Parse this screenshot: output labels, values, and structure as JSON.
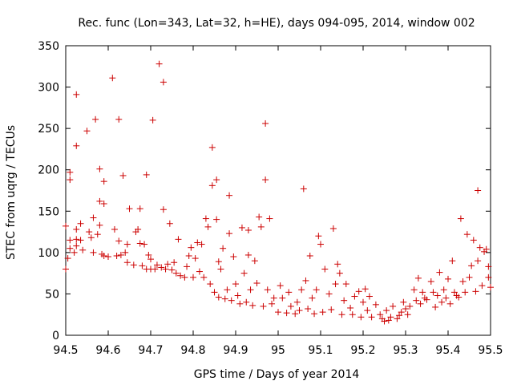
{
  "chart_data": {
    "type": "scatter",
    "title": "Rec. func (Lon=343, Lat=32, h=HE), days 094-095, 2014, window 002",
    "xlabel": "GPS time / Days of year 2014",
    "ylabel": "STEC from uqrg / TECUs",
    "xlim": [
      94.5,
      95.5
    ],
    "ylim": [
      0,
      350
    ],
    "xticks": [
      "94.5",
      "94.6",
      "94.7",
      "94.8",
      "94.9",
      "95",
      "95.1",
      "95.2",
      "95.3",
      "95.4",
      "95.5"
    ],
    "yticks": [
      "0",
      "50",
      "100",
      "150",
      "200",
      "250",
      "300",
      "350"
    ],
    "marker": "+",
    "color": "#cc0000",
    "grid": false,
    "legend": "none",
    "series": [
      {
        "points": [
          [
            94.5,
            80
          ],
          [
            94.5,
            132
          ],
          [
            94.505,
            93
          ],
          [
            94.51,
            188
          ],
          [
            94.51,
            197
          ],
          [
            94.51,
            115
          ],
          [
            94.51,
            105
          ],
          [
            94.52,
            100
          ],
          [
            94.525,
            291
          ],
          [
            94.525,
            229
          ],
          [
            94.525,
            128
          ],
          [
            94.525,
            116
          ],
          [
            94.525,
            108
          ],
          [
            94.535,
            135
          ],
          [
            94.535,
            115
          ],
          [
            94.54,
            103
          ],
          [
            94.55,
            247
          ],
          [
            94.555,
            125
          ],
          [
            94.56,
            118
          ],
          [
            94.565,
            142
          ],
          [
            94.565,
            100
          ],
          [
            94.57,
            261
          ],
          [
            94.575,
            122
          ],
          [
            94.58,
            201
          ],
          [
            94.58,
            162
          ],
          [
            94.58,
            133
          ],
          [
            94.585,
            98
          ],
          [
            94.59,
            186
          ],
          [
            94.59,
            159
          ],
          [
            94.59,
            96
          ],
          [
            94.6,
            95
          ],
          [
            94.61,
            311
          ],
          [
            94.615,
            128
          ],
          [
            94.62,
            96
          ],
          [
            94.625,
            261
          ],
          [
            94.625,
            114
          ],
          [
            94.63,
            97
          ],
          [
            94.635,
            193
          ],
          [
            94.64,
            100
          ],
          [
            94.645,
            110
          ],
          [
            94.645,
            88
          ],
          [
            94.65,
            153
          ],
          [
            94.66,
            85
          ],
          [
            94.665,
            125
          ],
          [
            94.67,
            128
          ],
          [
            94.675,
            111
          ],
          [
            94.675,
            153
          ],
          [
            94.68,
            84
          ],
          [
            94.685,
            110
          ],
          [
            94.69,
            194
          ],
          [
            94.69,
            80
          ],
          [
            94.695,
            97
          ],
          [
            94.7,
            92
          ],
          [
            94.7,
            80
          ],
          [
            94.705,
            260
          ],
          [
            94.71,
            80
          ],
          [
            94.715,
            85
          ],
          [
            94.72,
            328
          ],
          [
            94.725,
            82
          ],
          [
            94.73,
            306
          ],
          [
            94.73,
            152
          ],
          [
            94.735,
            80
          ],
          [
            94.74,
            86
          ],
          [
            94.745,
            135
          ],
          [
            94.75,
            79
          ],
          [
            94.755,
            88
          ],
          [
            94.76,
            75
          ],
          [
            94.765,
            116
          ],
          [
            94.77,
            72
          ],
          [
            94.78,
            70
          ],
          [
            94.785,
            83
          ],
          [
            94.79,
            96
          ],
          [
            94.795,
            106
          ],
          [
            94.8,
            70
          ],
          [
            94.805,
            93
          ],
          [
            94.81,
            112
          ],
          [
            94.815,
            77
          ],
          [
            94.82,
            110
          ],
          [
            94.825,
            70
          ],
          [
            94.83,
            141
          ],
          [
            94.835,
            131
          ],
          [
            94.84,
            62
          ],
          [
            94.845,
            227
          ],
          [
            94.845,
            181
          ],
          [
            94.85,
            52
          ],
          [
            94.855,
            188
          ],
          [
            94.855,
            140
          ],
          [
            94.86,
            89
          ],
          [
            94.86,
            46
          ],
          [
            94.865,
            80
          ],
          [
            94.87,
            105
          ],
          [
            94.875,
            44
          ],
          [
            94.88,
            55
          ],
          [
            94.885,
            169
          ],
          [
            94.885,
            123
          ],
          [
            94.89,
            42
          ],
          [
            94.895,
            95
          ],
          [
            94.9,
            62
          ],
          [
            94.905,
            48
          ],
          [
            94.91,
            38
          ],
          [
            94.915,
            130
          ],
          [
            94.92,
            75
          ],
          [
            94.925,
            40
          ],
          [
            94.93,
            127
          ],
          [
            94.93,
            97
          ],
          [
            94.935,
            55
          ],
          [
            94.94,
            36
          ],
          [
            94.945,
            90
          ],
          [
            94.95,
            63
          ],
          [
            94.955,
            143
          ],
          [
            94.96,
            131
          ],
          [
            94.965,
            35
          ],
          [
            94.97,
            256
          ],
          [
            94.97,
            188
          ],
          [
            94.975,
            55
          ],
          [
            94.98,
            141
          ],
          [
            94.985,
            38
          ],
          [
            94.99,
            45
          ],
          [
            95.0,
            28
          ],
          [
            95.005,
            60
          ],
          [
            95.01,
            45
          ],
          [
            95.02,
            27
          ],
          [
            95.025,
            52
          ],
          [
            95.03,
            35
          ],
          [
            95.04,
            26
          ],
          [
            95.045,
            40
          ],
          [
            95.05,
            30
          ],
          [
            95.055,
            55
          ],
          [
            95.06,
            177
          ],
          [
            95.065,
            66
          ],
          [
            95.07,
            32
          ],
          [
            95.075,
            96
          ],
          [
            95.08,
            45
          ],
          [
            95.085,
            26
          ],
          [
            95.09,
            55
          ],
          [
            95.095,
            120
          ],
          [
            95.1,
            110
          ],
          [
            95.105,
            28
          ],
          [
            95.11,
            80
          ],
          [
            95.12,
            50
          ],
          [
            95.125,
            31
          ],
          [
            95.13,
            129
          ],
          [
            95.135,
            62
          ],
          [
            95.14,
            86
          ],
          [
            95.145,
            75
          ],
          [
            95.15,
            25
          ],
          [
            95.155,
            42
          ],
          [
            95.16,
            62
          ],
          [
            95.17,
            33
          ],
          [
            95.175,
            25
          ],
          [
            95.18,
            47
          ],
          [
            95.19,
            53
          ],
          [
            95.195,
            22
          ],
          [
            95.2,
            40
          ],
          [
            95.205,
            56
          ],
          [
            95.21,
            30
          ],
          [
            95.215,
            47
          ],
          [
            95.22,
            22
          ],
          [
            95.23,
            37
          ],
          [
            95.24,
            25
          ],
          [
            95.245,
            20
          ],
          [
            95.25,
            17
          ],
          [
            95.255,
            30
          ],
          [
            95.26,
            18
          ],
          [
            95.265,
            22
          ],
          [
            95.27,
            35
          ],
          [
            95.28,
            20
          ],
          [
            95.285,
            24
          ],
          [
            95.29,
            28
          ],
          [
            95.295,
            40
          ],
          [
            95.3,
            32
          ],
          [
            95.305,
            25
          ],
          [
            95.31,
            35
          ],
          [
            95.32,
            55
          ],
          [
            95.325,
            42
          ],
          [
            95.33,
            69
          ],
          [
            95.335,
            38
          ],
          [
            95.34,
            52
          ],
          [
            95.345,
            45
          ],
          [
            95.35,
            43
          ],
          [
            95.36,
            65
          ],
          [
            95.365,
            52
          ],
          [
            95.37,
            34
          ],
          [
            95.375,
            48
          ],
          [
            95.38,
            76
          ],
          [
            95.385,
            40
          ],
          [
            95.39,
            55
          ],
          [
            95.395,
            45
          ],
          [
            95.4,
            68
          ],
          [
            95.405,
            38
          ],
          [
            95.41,
            90
          ],
          [
            95.415,
            52
          ],
          [
            95.42,
            48
          ],
          [
            95.425,
            46
          ],
          [
            95.43,
            141
          ],
          [
            95.435,
            65
          ],
          [
            95.44,
            52
          ],
          [
            95.445,
            122
          ],
          [
            95.45,
            70
          ],
          [
            95.455,
            84
          ],
          [
            95.46,
            115
          ],
          [
            95.465,
            53
          ],
          [
            95.47,
            175
          ],
          [
            95.47,
            90
          ],
          [
            95.475,
            106
          ],
          [
            95.48,
            60
          ],
          [
            95.485,
            101
          ],
          [
            95.49,
            104
          ],
          [
            95.495,
            83
          ],
          [
            95.495,
            70
          ],
          [
            95.5,
            58
          ]
        ]
      }
    ]
  }
}
